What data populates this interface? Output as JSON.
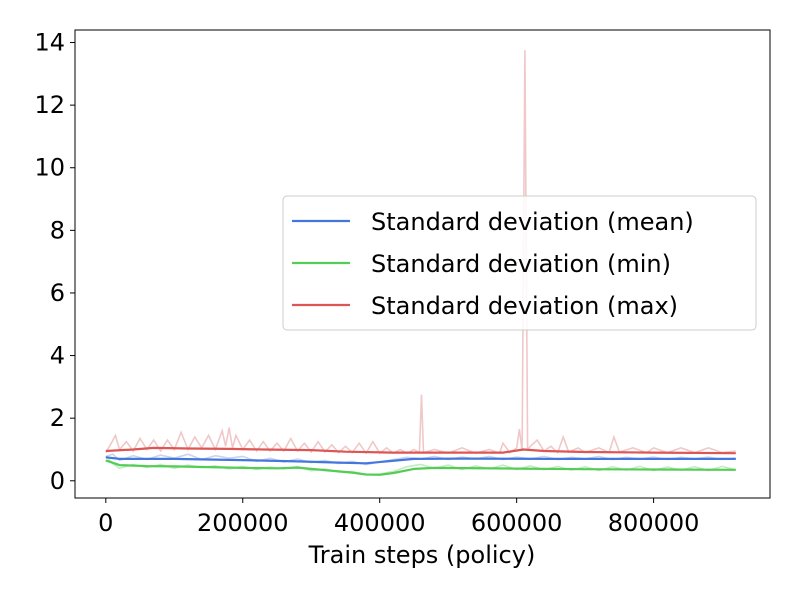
{
  "chart_data": {
    "type": "line",
    "title": "",
    "xlabel": "Train steps (policy)",
    "ylabel": "",
    "xlim": [
      -45000,
      970000
    ],
    "ylim": [
      -0.55,
      14.4
    ],
    "xticks": [
      0,
      200000,
      400000,
      600000,
      800000
    ],
    "xtick_labels": [
      "0",
      "200000",
      "400000",
      "600000",
      "800000"
    ],
    "yticks": [
      0,
      2,
      4,
      6,
      8,
      10,
      12,
      14
    ],
    "ytick_labels": [
      "0",
      "2",
      "4",
      "6",
      "8",
      "10",
      "12",
      "14"
    ],
    "grid": false,
    "legend_position": "center-right",
    "series": [
      {
        "name": "Standard deviation (mean)",
        "color": "#4477dd",
        "raw_color": "#c8d4f0",
        "smoothed": [
          [
            0,
            0.75
          ],
          [
            20000,
            0.7
          ],
          [
            100000,
            0.7
          ],
          [
            200000,
            0.66
          ],
          [
            280000,
            0.62
          ],
          [
            340000,
            0.58
          ],
          [
            380000,
            0.56
          ],
          [
            410000,
            0.62
          ],
          [
            450000,
            0.7
          ],
          [
            520000,
            0.71
          ],
          [
            650000,
            0.7
          ],
          [
            800000,
            0.7
          ],
          [
            920000,
            0.7
          ]
        ],
        "raw": [
          [
            0,
            0.78
          ],
          [
            10000,
            0.85
          ],
          [
            20000,
            0.65
          ],
          [
            40000,
            0.8
          ],
          [
            60000,
            0.68
          ],
          [
            80000,
            0.82
          ],
          [
            100000,
            0.72
          ],
          [
            120000,
            0.85
          ],
          [
            140000,
            0.68
          ],
          [
            160000,
            0.8
          ],
          [
            180000,
            0.72
          ],
          [
            200000,
            0.78
          ],
          [
            220000,
            0.62
          ],
          [
            240000,
            0.72
          ],
          [
            260000,
            0.6
          ],
          [
            280000,
            0.7
          ],
          [
            300000,
            0.58
          ],
          [
            320000,
            0.65
          ],
          [
            340000,
            0.55
          ],
          [
            360000,
            0.62
          ],
          [
            380000,
            0.52
          ],
          [
            400000,
            0.6
          ],
          [
            420000,
            0.68
          ],
          [
            440000,
            0.75
          ],
          [
            460000,
            0.7
          ],
          [
            480000,
            0.78
          ],
          [
            500000,
            0.68
          ],
          [
            520000,
            0.76
          ],
          [
            540000,
            0.7
          ],
          [
            560000,
            0.78
          ],
          [
            580000,
            0.68
          ],
          [
            600000,
            0.76
          ],
          [
            620000,
            0.7
          ],
          [
            640000,
            0.78
          ],
          [
            660000,
            0.68
          ],
          [
            680000,
            0.75
          ],
          [
            700000,
            0.7
          ],
          [
            720000,
            0.78
          ],
          [
            740000,
            0.68
          ],
          [
            760000,
            0.75
          ],
          [
            780000,
            0.7
          ],
          [
            800000,
            0.76
          ],
          [
            820000,
            0.68
          ],
          [
            840000,
            0.75
          ],
          [
            860000,
            0.7
          ],
          [
            880000,
            0.76
          ],
          [
            900000,
            0.68
          ],
          [
            920000,
            0.72
          ]
        ]
      },
      {
        "name": "Standard deviation (min)",
        "color": "#55cc55",
        "raw_color": "#c2ecc2",
        "smoothed": [
          [
            0,
            0.65
          ],
          [
            20000,
            0.5
          ],
          [
            60000,
            0.47
          ],
          [
            100000,
            0.46
          ],
          [
            200000,
            0.41
          ],
          [
            250000,
            0.4
          ],
          [
            280000,
            0.42
          ],
          [
            320000,
            0.34
          ],
          [
            360000,
            0.26
          ],
          [
            380000,
            0.2
          ],
          [
            400000,
            0.19
          ],
          [
            420000,
            0.25
          ],
          [
            450000,
            0.38
          ],
          [
            480000,
            0.41
          ],
          [
            600000,
            0.39
          ],
          [
            700000,
            0.37
          ],
          [
            800000,
            0.36
          ],
          [
            920000,
            0.35
          ]
        ],
        "raw": [
          [
            0,
            0.8
          ],
          [
            10000,
            0.55
          ],
          [
            20000,
            0.4
          ],
          [
            40000,
            0.52
          ],
          [
            60000,
            0.42
          ],
          [
            80000,
            0.52
          ],
          [
            100000,
            0.4
          ],
          [
            120000,
            0.5
          ],
          [
            140000,
            0.42
          ],
          [
            160000,
            0.48
          ],
          [
            180000,
            0.38
          ],
          [
            200000,
            0.46
          ],
          [
            220000,
            0.36
          ],
          [
            240000,
            0.44
          ],
          [
            260000,
            0.38
          ],
          [
            280000,
            0.46
          ],
          [
            300000,
            0.32
          ],
          [
            320000,
            0.38
          ],
          [
            340000,
            0.28
          ],
          [
            360000,
            0.3
          ],
          [
            380000,
            0.2
          ],
          [
            400000,
            0.22
          ],
          [
            420000,
            0.3
          ],
          [
            440000,
            0.45
          ],
          [
            460000,
            0.52
          ],
          [
            480000,
            0.4
          ],
          [
            500000,
            0.5
          ],
          [
            520000,
            0.36
          ],
          [
            540000,
            0.48
          ],
          [
            560000,
            0.38
          ],
          [
            580000,
            0.5
          ],
          [
            600000,
            0.36
          ],
          [
            620000,
            0.48
          ],
          [
            640000,
            0.35
          ],
          [
            660000,
            0.46
          ],
          [
            680000,
            0.34
          ],
          [
            700000,
            0.45
          ],
          [
            720000,
            0.33
          ],
          [
            740000,
            0.45
          ],
          [
            760000,
            0.34
          ],
          [
            780000,
            0.46
          ],
          [
            800000,
            0.33
          ],
          [
            820000,
            0.44
          ],
          [
            840000,
            0.34
          ],
          [
            860000,
            0.45
          ],
          [
            880000,
            0.33
          ],
          [
            900000,
            0.46
          ],
          [
            920000,
            0.35
          ]
        ]
      },
      {
        "name": "Standard deviation (max)",
        "color": "#dd5555",
        "raw_color": "#f0c8c8",
        "smoothed": [
          [
            0,
            0.95
          ],
          [
            40000,
            1.0
          ],
          [
            70000,
            1.05
          ],
          [
            120000,
            1.03
          ],
          [
            180000,
            1.02
          ],
          [
            230000,
            1.0
          ],
          [
            300000,
            0.98
          ],
          [
            350000,
            0.93
          ],
          [
            420000,
            0.9
          ],
          [
            500000,
            0.9
          ],
          [
            580000,
            0.9
          ],
          [
            610000,
            1.0
          ],
          [
            640000,
            0.95
          ],
          [
            700000,
            0.92
          ],
          [
            800000,
            0.9
          ],
          [
            920000,
            0.88
          ]
        ],
        "raw": [
          [
            0,
            0.9
          ],
          [
            8000,
            1.2
          ],
          [
            14000,
            1.45
          ],
          [
            20000,
            1.0
          ],
          [
            30000,
            1.25
          ],
          [
            40000,
            0.95
          ],
          [
            50000,
            1.35
          ],
          [
            60000,
            1.0
          ],
          [
            70000,
            1.3
          ],
          [
            80000,
            0.95
          ],
          [
            90000,
            1.3
          ],
          [
            100000,
            1.0
          ],
          [
            110000,
            1.55
          ],
          [
            120000,
            1.0
          ],
          [
            130000,
            1.4
          ],
          [
            140000,
            1.05
          ],
          [
            150000,
            1.45
          ],
          [
            160000,
            1.0
          ],
          [
            170000,
            1.6
          ],
          [
            175000,
            1.1
          ],
          [
            180000,
            1.7
          ],
          [
            185000,
            1.05
          ],
          [
            190000,
            1.45
          ],
          [
            200000,
            1.0
          ],
          [
            210000,
            1.3
          ],
          [
            220000,
            0.95
          ],
          [
            230000,
            1.25
          ],
          [
            240000,
            0.95
          ],
          [
            250000,
            1.2
          ],
          [
            260000,
            0.95
          ],
          [
            270000,
            1.35
          ],
          [
            280000,
            0.95
          ],
          [
            290000,
            1.2
          ],
          [
            300000,
            0.92
          ],
          [
            310000,
            1.25
          ],
          [
            320000,
            0.92
          ],
          [
            330000,
            1.15
          ],
          [
            340000,
            0.9
          ],
          [
            350000,
            1.1
          ],
          [
            360000,
            0.9
          ],
          [
            370000,
            1.2
          ],
          [
            380000,
            0.88
          ],
          [
            390000,
            1.25
          ],
          [
            400000,
            0.88
          ],
          [
            410000,
            1.05
          ],
          [
            420000,
            0.88
          ],
          [
            430000,
            1.0
          ],
          [
            440000,
            0.88
          ],
          [
            450000,
            1.0
          ],
          [
            458000,
            0.9
          ],
          [
            461000,
            2.75
          ],
          [
            464000,
            0.9
          ],
          [
            480000,
            1.0
          ],
          [
            500000,
            0.88
          ],
          [
            520000,
            1.05
          ],
          [
            540000,
            0.88
          ],
          [
            560000,
            1.0
          ],
          [
            575000,
            0.88
          ],
          [
            580000,
            1.2
          ],
          [
            590000,
            0.9
          ],
          [
            600000,
            1.05
          ],
          [
            604000,
            1.65
          ],
          [
            608000,
            0.95
          ],
          [
            612000,
            13.75
          ],
          [
            616000,
            1.0
          ],
          [
            620000,
            1.1
          ],
          [
            630000,
            1.3
          ],
          [
            640000,
            0.95
          ],
          [
            650000,
            1.1
          ],
          [
            660000,
            0.9
          ],
          [
            668000,
            1.4
          ],
          [
            676000,
            0.92
          ],
          [
            690000,
            1.05
          ],
          [
            700000,
            0.9
          ],
          [
            720000,
            1.05
          ],
          [
            735000,
            0.9
          ],
          [
            742000,
            1.4
          ],
          [
            750000,
            0.92
          ],
          [
            770000,
            1.05
          ],
          [
            790000,
            0.9
          ],
          [
            800000,
            1.05
          ],
          [
            820000,
            0.9
          ],
          [
            840000,
            1.05
          ],
          [
            860000,
            0.9
          ],
          [
            880000,
            1.05
          ],
          [
            900000,
            0.9
          ],
          [
            920000,
            0.95
          ]
        ]
      }
    ]
  }
}
